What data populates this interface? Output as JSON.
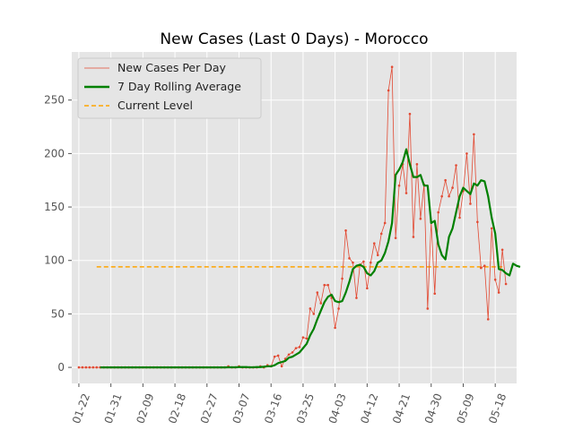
{
  "chart_data": {
    "type": "line",
    "title": "New Cases (Last 0 Days) - Morocco",
    "xlabel": "",
    "ylabel": "",
    "x_tick_labels": [
      "01-22",
      "01-31",
      "02-09",
      "02-18",
      "02-27",
      "03-07",
      "03-16",
      "03-25",
      "04-03",
      "04-12",
      "04-21",
      "04-30",
      "05-09",
      "05-18"
    ],
    "y_tick_labels": [
      "0",
      "50",
      "100",
      "150",
      "200",
      "250"
    ],
    "y_ticks": [
      0,
      50,
      100,
      150,
      200,
      250
    ],
    "ylim": [
      -15,
      295
    ],
    "xlim": [
      "2020-01-20",
      "2020-05-24"
    ],
    "x_start_date": "2020-01-22",
    "grid": true,
    "legend_position": "upper-left",
    "legend": [
      {
        "label": "New Cases Per Day",
        "color": "#e24a33"
      },
      {
        "label": "7 Day Rolling Average",
        "color": "#008000"
      },
      {
        "label": "Current Level",
        "color": "#ffa500"
      }
    ],
    "series": [
      {
        "name": "New Cases Per Day",
        "color": "#e24a33",
        "values": [
          0,
          0,
          0,
          0,
          0,
          0,
          0,
          0,
          0,
          0,
          0,
          0,
          0,
          0,
          0,
          0,
          0,
          0,
          0,
          0,
          0,
          0,
          0,
          0,
          0,
          0,
          0,
          0,
          0,
          0,
          0,
          0,
          0,
          0,
          0,
          0,
          0,
          0,
          0,
          0,
          0,
          0,
          1,
          0,
          0,
          1,
          0,
          0,
          0,
          0,
          0,
          1,
          0,
          2,
          1,
          10,
          11,
          1,
          8,
          12,
          14,
          18,
          19,
          28,
          27,
          55,
          50,
          70,
          60,
          77,
          77,
          65,
          37,
          55,
          83,
          128,
          102,
          98,
          65,
          96,
          99,
          74,
          98,
          116,
          105,
          125,
          135,
          259,
          281,
          121,
          170,
          190,
          163,
          237,
          122,
          190,
          139,
          171,
          55,
          136,
          69,
          145,
          160,
          175,
          160,
          168,
          189,
          140,
          165,
          200,
          153,
          218,
          136,
          93,
          95,
          45,
          130,
          82,
          70,
          110,
          78
        ]
      },
      {
        "name": "7 Day Rolling Average",
        "color": "#008000",
        "start_date": "2020-01-28",
        "values": [
          0,
          0,
          0,
          0,
          0,
          0,
          0,
          0,
          0,
          0,
          0,
          0,
          0,
          0,
          0,
          0,
          0,
          0,
          0,
          0,
          0,
          0,
          0,
          0,
          0,
          0,
          0,
          0,
          0,
          0,
          0,
          0,
          0,
          0,
          0,
          0,
          0.1,
          0.1,
          0.1,
          0.3,
          0.3,
          0.3,
          0.1,
          0.1,
          0.3,
          0.3,
          0.6,
          1,
          1,
          2,
          4,
          5,
          6,
          9,
          10,
          12,
          14,
          18,
          22,
          30,
          36,
          45,
          53,
          61,
          66,
          68,
          62,
          61,
          62,
          70,
          80,
          92,
          95,
          96,
          94,
          88,
          86,
          90,
          98,
          100,
          107,
          118,
          135,
          180,
          185,
          192,
          204,
          190,
          178,
          178,
          180,
          170,
          170,
          135,
          137,
          115,
          105,
          101,
          122,
          130,
          145,
          160,
          168,
          165,
          162,
          172,
          170,
          175,
          174,
          160,
          140,
          125,
          92,
          91,
          88,
          86,
          97,
          95,
          94
        ]
      },
      {
        "name": "Current Level",
        "color": "#ffa500",
        "start_date": "2020-01-27",
        "end_date": "2020-05-20",
        "value": 94
      }
    ]
  }
}
